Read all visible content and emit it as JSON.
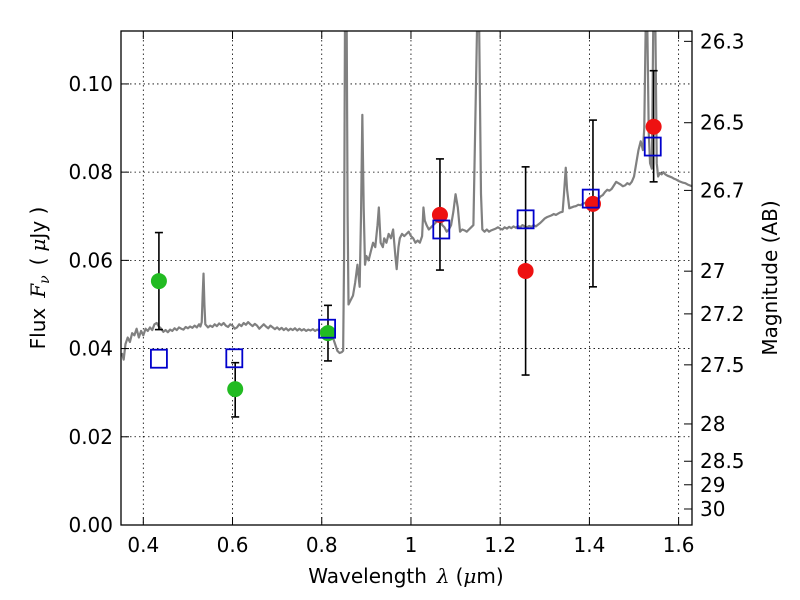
{
  "chart_data": {
    "type": "scatter",
    "xlabel": {
      "prefix": "Wavelength",
      "symbol": "λ",
      "unit_open": "(",
      "unit_mu": "μ",
      "unit_rest": "m)"
    },
    "ylabel": {
      "prefix": "Flux",
      "symbol": "F",
      "subscript": "ν",
      "unit_open": "(",
      "unit_mu": "μ",
      "unit_rest": "Jy )"
    },
    "ylabel_right": "Magnitude (AB)",
    "xlim": [
      0.35,
      1.63
    ],
    "ylim": [
      0.0,
      0.112
    ],
    "x_ticks": [
      0.4,
      0.6,
      0.8,
      1.0,
      1.2,
      1.4,
      1.6
    ],
    "x_tick_labels": [
      "0.4",
      "0.6",
      "0.8",
      "1",
      "1.2",
      "1.4",
      "1.6"
    ],
    "y_ticks": [
      0.0,
      0.02,
      0.04,
      0.06,
      0.08,
      0.1
    ],
    "y_tick_labels": [
      "0.00",
      "0.02",
      "0.04",
      "0.06",
      "0.08",
      "0.10"
    ],
    "mag_ticks": [
      26.3,
      26.5,
      26.7,
      27,
      27.2,
      27.5,
      28,
      28.5,
      29,
      30
    ],
    "mag_tick_labels": [
      "26.3",
      "26.5",
      "26.7",
      "27",
      "27.2",
      "27.5",
      "28",
      "28.5",
      "29",
      "30"
    ],
    "grid": true,
    "colors": {
      "spectrum": "#808080",
      "green": "#22bb22",
      "red": "#ee1111",
      "model": "#0000cc",
      "errorbar": "#000000"
    },
    "spectrum": [
      [
        0.352,
        0.039
      ],
      [
        0.356,
        0.0375
      ],
      [
        0.36,
        0.041
      ],
      [
        0.365,
        0.0425
      ],
      [
        0.37,
        0.0415
      ],
      [
        0.375,
        0.0435
      ],
      [
        0.38,
        0.043
      ],
      [
        0.385,
        0.0445
      ],
      [
        0.39,
        0.0425
      ],
      [
        0.395,
        0.044
      ],
      [
        0.4,
        0.043
      ],
      [
        0.405,
        0.0445
      ],
      [
        0.41,
        0.044
      ],
      [
        0.415,
        0.0448
      ],
      [
        0.42,
        0.0442
      ],
      [
        0.425,
        0.0455
      ],
      [
        0.43,
        0.0458
      ],
      [
        0.435,
        0.045
      ],
      [
        0.44,
        0.0445
      ],
      [
        0.445,
        0.0438
      ],
      [
        0.45,
        0.0442
      ],
      [
        0.455,
        0.0437
      ],
      [
        0.46,
        0.0443
      ],
      [
        0.465,
        0.044
      ],
      [
        0.47,
        0.0446
      ],
      [
        0.475,
        0.0442
      ],
      [
        0.48,
        0.0448
      ],
      [
        0.485,
        0.0445
      ],
      [
        0.49,
        0.0443
      ],
      [
        0.495,
        0.0449
      ],
      [
        0.5,
        0.0446
      ],
      [
        0.505,
        0.045
      ],
      [
        0.51,
        0.0447
      ],
      [
        0.515,
        0.0452
      ],
      [
        0.52,
        0.0448
      ],
      [
        0.525,
        0.0455
      ],
      [
        0.528,
        0.045
      ],
      [
        0.531,
        0.046
      ],
      [
        0.533,
        0.052
      ],
      [
        0.535,
        0.057
      ],
      [
        0.537,
        0.05
      ],
      [
        0.539,
        0.0455
      ],
      [
        0.545,
        0.0448
      ],
      [
        0.55,
        0.0452
      ],
      [
        0.555,
        0.0449
      ],
      [
        0.56,
        0.0455
      ],
      [
        0.565,
        0.0451
      ],
      [
        0.57,
        0.0457
      ],
      [
        0.575,
        0.0453
      ],
      [
        0.58,
        0.0458
      ],
      [
        0.585,
        0.0452
      ],
      [
        0.59,
        0.0449
      ],
      [
        0.595,
        0.0455
      ],
      [
        0.6,
        0.0452
      ],
      [
        0.605,
        0.0445
      ],
      [
        0.61,
        0.0448
      ],
      [
        0.615,
        0.0455
      ],
      [
        0.62,
        0.0451
      ],
      [
        0.625,
        0.0458
      ],
      [
        0.63,
        0.0454
      ],
      [
        0.635,
        0.046
      ],
      [
        0.64,
        0.0455
      ],
      [
        0.645,
        0.0451
      ],
      [
        0.65,
        0.0456
      ],
      [
        0.655,
        0.0452
      ],
      [
        0.66,
        0.0445
      ],
      [
        0.665,
        0.045
      ],
      [
        0.67,
        0.0455
      ],
      [
        0.675,
        0.045
      ],
      [
        0.68,
        0.0446
      ],
      [
        0.685,
        0.0452
      ],
      [
        0.69,
        0.0448
      ],
      [
        0.695,
        0.0444
      ],
      [
        0.7,
        0.0448
      ],
      [
        0.705,
        0.0443
      ],
      [
        0.71,
        0.0447
      ],
      [
        0.715,
        0.0442
      ],
      [
        0.72,
        0.0446
      ],
      [
        0.725,
        0.0441
      ],
      [
        0.73,
        0.0445
      ],
      [
        0.735,
        0.0442
      ],
      [
        0.74,
        0.0446
      ],
      [
        0.745,
        0.0441
      ],
      [
        0.75,
        0.0445
      ],
      [
        0.755,
        0.0441
      ],
      [
        0.76,
        0.0444
      ],
      [
        0.765,
        0.044
      ],
      [
        0.77,
        0.0443
      ],
      [
        0.775,
        0.0441
      ],
      [
        0.78,
        0.0444
      ],
      [
        0.785,
        0.044
      ],
      [
        0.79,
        0.0443
      ],
      [
        0.795,
        0.044
      ],
      [
        0.8,
        0.0442
      ],
      [
        0.805,
        0.0439
      ],
      [
        0.81,
        0.0437
      ],
      [
        0.815,
        0.0438
      ],
      [
        0.82,
        0.0435
      ],
      [
        0.825,
        0.0425
      ],
      [
        0.83,
        0.041
      ],
      [
        0.835,
        0.0395
      ],
      [
        0.84,
        0.039
      ],
      [
        0.845,
        0.0392
      ],
      [
        0.848,
        0.0395
      ],
      [
        0.85,
        0.06
      ],
      [
        0.852,
        0.112
      ],
      [
        0.856,
        0.112
      ],
      [
        0.858,
        0.07
      ],
      [
        0.86,
        0.05
      ],
      [
        0.865,
        0.051
      ],
      [
        0.87,
        0.052
      ],
      [
        0.875,
        0.055
      ],
      [
        0.88,
        0.059
      ],
      [
        0.885,
        0.054
      ],
      [
        0.888,
        0.07
      ],
      [
        0.891,
        0.093
      ],
      [
        0.894,
        0.072
      ],
      [
        0.897,
        0.059
      ],
      [
        0.9,
        0.061
      ],
      [
        0.905,
        0.06
      ],
      [
        0.91,
        0.062
      ],
      [
        0.915,
        0.064
      ],
      [
        0.92,
        0.063
      ],
      [
        0.925,
        0.068
      ],
      [
        0.928,
        0.072
      ],
      [
        0.932,
        0.064
      ],
      [
        0.937,
        0.063
      ],
      [
        0.94,
        0.065
      ],
      [
        0.945,
        0.064
      ],
      [
        0.95,
        0.066
      ],
      [
        0.955,
        0.065
      ],
      [
        0.96,
        0.067
      ],
      [
        0.965,
        0.061
      ],
      [
        0.968,
        0.058
      ],
      [
        0.972,
        0.063
      ],
      [
        0.975,
        0.065
      ],
      [
        0.98,
        0.066
      ],
      [
        0.985,
        0.0655
      ],
      [
        0.99,
        0.066
      ],
      [
        0.995,
        0.0665
      ],
      [
        1.0,
        0.0655
      ],
      [
        1.005,
        0.065
      ],
      [
        1.01,
        0.064
      ],
      [
        1.015,
        0.0645
      ],
      [
        1.02,
        0.064
      ],
      [
        1.025,
        0.0655
      ],
      [
        1.028,
        0.072
      ],
      [
        1.031,
        0.069
      ],
      [
        1.035,
        0.068
      ],
      [
        1.04,
        0.067
      ],
      [
        1.045,
        0.0675
      ],
      [
        1.05,
        0.068
      ],
      [
        1.055,
        0.0685
      ],
      [
        1.06,
        0.069
      ],
      [
        1.065,
        0.0695
      ],
      [
        1.07,
        0.068
      ],
      [
        1.075,
        0.0675
      ],
      [
        1.08,
        0.0665
      ],
      [
        1.085,
        0.067
      ],
      [
        1.09,
        0.068
      ],
      [
        1.095,
        0.071
      ],
      [
        1.1,
        0.075
      ],
      [
        1.105,
        0.072
      ],
      [
        1.11,
        0.0665
      ],
      [
        1.115,
        0.067
      ],
      [
        1.12,
        0.0668
      ],
      [
        1.125,
        0.0665
      ],
      [
        1.13,
        0.067
      ],
      [
        1.135,
        0.0675
      ],
      [
        1.14,
        0.068
      ],
      [
        1.144,
        0.09
      ],
      [
        1.148,
        0.112
      ],
      [
        1.153,
        0.112
      ],
      [
        1.157,
        0.075
      ],
      [
        1.16,
        0.067
      ],
      [
        1.165,
        0.0665
      ],
      [
        1.17,
        0.067
      ],
      [
        1.175,
        0.0665
      ],
      [
        1.18,
        0.0668
      ],
      [
        1.185,
        0.067
      ],
      [
        1.19,
        0.0672
      ],
      [
        1.195,
        0.0675
      ],
      [
        1.2,
        0.0672
      ],
      [
        1.205,
        0.067
      ],
      [
        1.21,
        0.0675
      ],
      [
        1.215,
        0.0672
      ],
      [
        1.22,
        0.0676
      ],
      [
        1.225,
        0.0673
      ],
      [
        1.23,
        0.0677
      ],
      [
        1.235,
        0.0674
      ],
      [
        1.24,
        0.0678
      ],
      [
        1.245,
        0.0675
      ],
      [
        1.25,
        0.068
      ],
      [
        1.255,
        0.0677
      ],
      [
        1.26,
        0.0675
      ],
      [
        1.265,
        0.0678
      ],
      [
        1.27,
        0.0676
      ],
      [
        1.275,
        0.068
      ],
      [
        1.28,
        0.0677
      ],
      [
        1.285,
        0.0681
      ],
      [
        1.29,
        0.0685
      ],
      [
        1.295,
        0.069
      ],
      [
        1.3,
        0.0695
      ],
      [
        1.305,
        0.0698
      ],
      [
        1.31,
        0.07
      ],
      [
        1.315,
        0.0702
      ],
      [
        1.32,
        0.0705
      ],
      [
        1.325,
        0.0703
      ],
      [
        1.33,
        0.0706
      ],
      [
        1.335,
        0.0709
      ],
      [
        1.34,
        0.071
      ],
      [
        1.343,
        0.075
      ],
      [
        1.347,
        0.081
      ],
      [
        1.35,
        0.076
      ],
      [
        1.355,
        0.0718
      ],
      [
        1.36,
        0.072
      ],
      [
        1.365,
        0.0722
      ],
      [
        1.37,
        0.0723
      ],
      [
        1.375,
        0.0726
      ],
      [
        1.38,
        0.0725
      ],
      [
        1.385,
        0.0728
      ],
      [
        1.39,
        0.073
      ],
      [
        1.395,
        0.0733
      ],
      [
        1.4,
        0.0735
      ],
      [
        1.405,
        0.0738
      ],
      [
        1.41,
        0.074
      ],
      [
        1.415,
        0.0742
      ],
      [
        1.42,
        0.0738
      ],
      [
        1.425,
        0.0745
      ],
      [
        1.43,
        0.0748
      ],
      [
        1.435,
        0.0755
      ],
      [
        1.44,
        0.076
      ],
      [
        1.445,
        0.0758
      ],
      [
        1.45,
        0.0762
      ],
      [
        1.455,
        0.077
      ],
      [
        1.46,
        0.0778
      ],
      [
        1.465,
        0.0775
      ],
      [
        1.47,
        0.0772
      ],
      [
        1.475,
        0.0768
      ],
      [
        1.48,
        0.077
      ],
      [
        1.485,
        0.0775
      ],
      [
        1.49,
        0.0772
      ],
      [
        1.495,
        0.0778
      ],
      [
        1.5,
        0.079
      ],
      [
        1.505,
        0.082
      ],
      [
        1.51,
        0.085
      ],
      [
        1.515,
        0.087
      ],
      [
        1.52,
        0.085
      ],
      [
        1.523,
        0.09
      ],
      [
        1.526,
        0.112
      ],
      [
        1.53,
        0.112
      ],
      [
        1.533,
        0.089
      ],
      [
        1.536,
        0.082
      ],
      [
        1.54,
        0.0808
      ],
      [
        1.543,
        0.112
      ],
      [
        1.548,
        0.112
      ],
      [
        1.551,
        0.082
      ],
      [
        1.554,
        0.079
      ],
      [
        1.558,
        0.0798
      ],
      [
        1.562,
        0.0795
      ],
      [
        1.566,
        0.08
      ],
      [
        1.57,
        0.0795
      ],
      [
        1.575,
        0.0792
      ],
      [
        1.58,
        0.079
      ],
      [
        1.585,
        0.0788
      ],
      [
        1.59,
        0.0785
      ],
      [
        1.595,
        0.0783
      ],
      [
        1.6,
        0.078
      ],
      [
        1.605,
        0.0778
      ],
      [
        1.61,
        0.0776
      ],
      [
        1.615,
        0.0775
      ],
      [
        1.62,
        0.0772
      ],
      [
        1.625,
        0.077
      ],
      [
        1.63,
        0.0768
      ]
    ],
    "series": [
      {
        "marker": "circle",
        "color_key": "green",
        "points": [
          {
            "x": 0.435,
            "y": 0.0553,
            "yerr_low": 0.0443,
            "yerr_high": 0.0663
          },
          {
            "x": 0.606,
            "y": 0.0308,
            "yerr_low": 0.0245,
            "yerr_high": 0.0368
          },
          {
            "x": 0.814,
            "y": 0.0435,
            "yerr_low": 0.0372,
            "yerr_high": 0.0498
          }
        ]
      },
      {
        "marker": "circle",
        "color_key": "red",
        "points": [
          {
            "x": 1.065,
            "y": 0.0703,
            "yerr_low": 0.0578,
            "yerr_high": 0.083
          },
          {
            "x": 1.257,
            "y": 0.0576,
            "yerr_low": 0.034,
            "yerr_high": 0.0812
          },
          {
            "x": 1.408,
            "y": 0.0728,
            "yerr_low": 0.054,
            "yerr_high": 0.0918
          },
          {
            "x": 1.544,
            "y": 0.0903,
            "yerr_low": 0.0778,
            "yerr_high": 0.103
          }
        ]
      },
      {
        "marker": "square",
        "color_key": "model",
        "points": [
          {
            "x": 0.435,
            "y": 0.0377
          },
          {
            "x": 0.604,
            "y": 0.0378
          },
          {
            "x": 0.812,
            "y": 0.0445
          },
          {
            "x": 1.068,
            "y": 0.067
          },
          {
            "x": 1.257,
            "y": 0.0693
          },
          {
            "x": 1.403,
            "y": 0.074
          },
          {
            "x": 1.542,
            "y": 0.0858
          }
        ]
      }
    ]
  }
}
